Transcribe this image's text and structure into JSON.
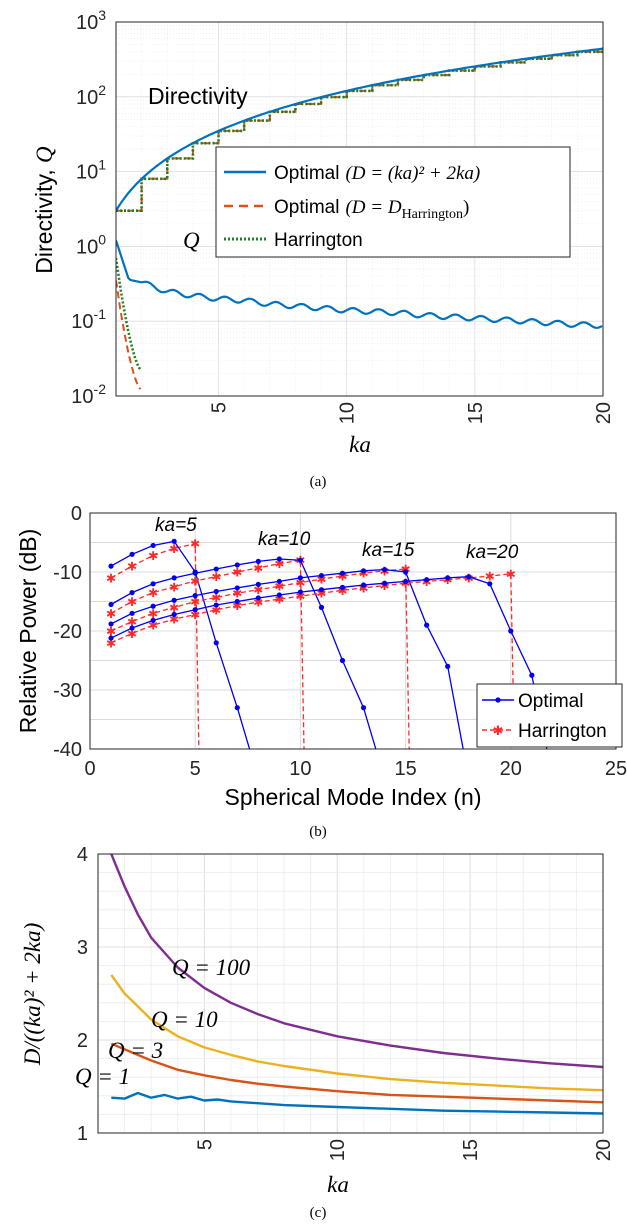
{
  "chart_data": [
    {
      "id": "a",
      "type": "line",
      "caption": "(a)",
      "ylabel_main": "Directivity, ",
      "ylabel_italic": "Q",
      "xlabel": "ka",
      "yscale": "log",
      "xlim": [
        1,
        20
      ],
      "ylim": [
        0.01,
        1000
      ],
      "xticks": [
        "5",
        "10",
        "15",
        "20"
      ],
      "ytick_bases": [
        "10",
        "10",
        "10",
        "10",
        "10",
        "10"
      ],
      "ytick_exps": [
        "-2",
        "-1",
        "0",
        "1",
        "2",
        "3"
      ],
      "grid": true,
      "annotations": [
        "Directivity",
        "Q"
      ],
      "legend": [
        {
          "label": "Optimal",
          "formula": "(D = (ka)² + 2ka)"
        },
        {
          "label": "Optimal",
          "formula": "(D = D",
          "sub": "Harrington",
          "close": ")"
        },
        {
          "label": "Harrington",
          "formula": ""
        }
      ],
      "legend_position": "center-right",
      "directivity_series": {
        "x": [
          1,
          2,
          3,
          4,
          5,
          6,
          7,
          8,
          9,
          10,
          11,
          12,
          13,
          14,
          15,
          16,
          17,
          18,
          19,
          20
        ],
        "optimal": [
          3,
          8,
          15,
          24,
          35,
          48,
          63,
          80,
          99,
          120,
          143,
          168,
          195,
          224,
          255,
          288,
          323,
          360,
          399,
          440
        ],
        "harrington_steps": [
          3,
          8,
          15,
          24,
          35,
          48,
          63,
          80,
          99,
          120,
          143,
          168,
          195,
          224,
          255,
          288,
          323,
          360,
          399,
          440
        ]
      },
      "q_series": {
        "optimal_x": [
          1,
          1.5,
          2,
          3,
          4,
          5,
          6,
          7,
          8,
          9,
          10,
          11,
          12,
          13,
          14,
          15,
          16,
          17,
          18,
          19,
          20
        ],
        "optimal_q": [
          1.2,
          0.36,
          0.33,
          0.25,
          0.22,
          0.2,
          0.19,
          0.17,
          0.16,
          0.15,
          0.14,
          0.135,
          0.13,
          0.12,
          0.115,
          0.11,
          0.105,
          0.1,
          0.095,
          0.09,
          0.088
        ],
        "harrington_peak": 0.7,
        "harrington_trough": 0.02,
        "optimal_dd_peak": 0.35,
        "optimal_dd_trough": 0.012
      }
    },
    {
      "id": "b",
      "type": "line",
      "caption": "(b)",
      "xlabel": "Spherical Mode Index (n)",
      "ylabel": "Relative Power (dB)",
      "xlim": [
        0,
        25
      ],
      "ylim": [
        -40,
        0
      ],
      "xticks": [
        "0",
        "5",
        "10",
        "15",
        "20",
        "25"
      ],
      "yticks": [
        "0",
        "-10",
        "-20",
        "-30",
        "-40"
      ],
      "grid": true,
      "legend": [
        "Optimal",
        "Harrington"
      ],
      "legend_position": "bottom-right",
      "annotations": [
        "ka=5",
        "ka=10",
        "ka=15",
        "ka=20"
      ],
      "series": [
        {
          "ka": 5,
          "optimal_n": [
            1,
            2,
            3,
            4,
            5,
            6,
            7,
            8
          ],
          "optimal_db": [
            -9,
            -7,
            -5.5,
            -4.8,
            -10,
            -22,
            -33,
            -45
          ],
          "harrington_n": [
            1,
            2,
            3,
            4,
            5,
            5.2
          ],
          "harrington_db": [
            -11,
            -9,
            -7.2,
            -6,
            -5.2,
            -45
          ]
        },
        {
          "ka": 10,
          "optimal_n": [
            1,
            2,
            3,
            4,
            5,
            6,
            7,
            8,
            9,
            10,
            11,
            12,
            13,
            14
          ],
          "optimal_db": [
            -15.5,
            -13.5,
            -12,
            -11,
            -10.2,
            -9.5,
            -8.8,
            -8.2,
            -7.8,
            -8,
            -16,
            -25,
            -33,
            -45
          ],
          "harrington_n": [
            1,
            2,
            3,
            4,
            5,
            6,
            7,
            8,
            9,
            10,
            10.2
          ],
          "harrington_db": [
            -17,
            -15,
            -13.5,
            -12.5,
            -11.5,
            -10.8,
            -10,
            -9.3,
            -8.6,
            -8,
            -45
          ]
        },
        {
          "ka": 15,
          "optimal_n": [
            1,
            2,
            3,
            4,
            5,
            6,
            7,
            8,
            9,
            10,
            11,
            12,
            13,
            14,
            15,
            16,
            17,
            18
          ],
          "optimal_db": [
            -18.8,
            -17,
            -15.8,
            -14.8,
            -14,
            -13.3,
            -12.7,
            -12.1,
            -11.6,
            -11,
            -10.6,
            -10.2,
            -9.8,
            -9.6,
            -10,
            -19,
            -26,
            -45
          ],
          "harrington_n": [
            1,
            2,
            3,
            4,
            5,
            6,
            7,
            8,
            9,
            10,
            11,
            12,
            13,
            14,
            15,
            15.2
          ],
          "harrington_db": [
            -20,
            -18.4,
            -17,
            -16,
            -15,
            -14.3,
            -13.6,
            -13,
            -12.4,
            -11.8,
            -11.2,
            -10.7,
            -10.2,
            -9.8,
            -9.5,
            -45
          ]
        },
        {
          "ka": 20,
          "optimal_n": [
            1,
            2,
            3,
            4,
            5,
            6,
            7,
            8,
            9,
            10,
            11,
            12,
            13,
            14,
            15,
            16,
            17,
            18,
            19,
            20,
            21,
            22
          ],
          "optimal_db": [
            -21.2,
            -19.5,
            -18.2,
            -17.2,
            -16.4,
            -15.6,
            -15,
            -14.4,
            -13.9,
            -13.4,
            -13,
            -12.6,
            -12.2,
            -11.9,
            -11.6,
            -11.3,
            -11,
            -10.8,
            -12,
            -20,
            -27.5,
            -45
          ],
          "harrington_n": [
            1,
            2,
            3,
            4,
            5,
            6,
            7,
            8,
            9,
            10,
            11,
            12,
            13,
            14,
            15,
            16,
            17,
            18,
            19,
            20,
            20.2
          ],
          "harrington_db": [
            -22,
            -20.4,
            -19,
            -18,
            -17.2,
            -16.4,
            -15.7,
            -15.1,
            -14.6,
            -14.1,
            -13.6,
            -13.1,
            -12.7,
            -12.3,
            -11.9,
            -11.6,
            -11.3,
            -11,
            -10.7,
            -10.3,
            -45
          ]
        }
      ]
    },
    {
      "id": "c",
      "type": "line",
      "caption": "(c)",
      "xlabel": "ka",
      "ylabel": "D/((ka)² + 2ka)",
      "xlim": [
        1,
        20
      ],
      "ylim": [
        1,
        4
      ],
      "xticks": [
        "5",
        "10",
        "15",
        "20"
      ],
      "yticks": [
        "1",
        "2",
        "3",
        "4"
      ],
      "grid": true,
      "series": [
        {
          "name": "Q = 100",
          "color": "#7E2F8E",
          "x": [
            1.5,
            2,
            2.5,
            3,
            4,
            5,
            6,
            7,
            8,
            10,
            12,
            14,
            16,
            18,
            20
          ],
          "y": [
            4.0,
            3.65,
            3.35,
            3.1,
            2.78,
            2.56,
            2.4,
            2.28,
            2.18,
            2.04,
            1.94,
            1.86,
            1.8,
            1.75,
            1.71
          ]
        },
        {
          "name": "Q = 10",
          "color": "#EDB120",
          "x": [
            1.5,
            2,
            3,
            4,
            5,
            6,
            7,
            8,
            10,
            12,
            14,
            16,
            18,
            20
          ],
          "y": [
            2.7,
            2.5,
            2.22,
            2.04,
            1.92,
            1.84,
            1.77,
            1.72,
            1.64,
            1.58,
            1.54,
            1.51,
            1.48,
            1.46
          ]
        },
        {
          "name": "Q = 3",
          "color": "#D95319",
          "x": [
            1.5,
            2,
            3,
            4,
            5,
            6,
            7,
            8,
            10,
            12,
            14,
            16,
            18,
            20
          ],
          "y": [
            1.96,
            1.9,
            1.78,
            1.68,
            1.62,
            1.57,
            1.53,
            1.5,
            1.45,
            1.41,
            1.39,
            1.37,
            1.35,
            1.33
          ]
        },
        {
          "name": "Q = 1",
          "color": "#0072BD",
          "x": [
            1.5,
            2,
            2.5,
            3,
            3.5,
            4,
            4.5,
            5,
            5.5,
            6,
            7,
            8,
            10,
            12,
            14,
            16,
            18,
            20
          ],
          "y": [
            1.38,
            1.37,
            1.43,
            1.38,
            1.41,
            1.37,
            1.39,
            1.35,
            1.36,
            1.34,
            1.32,
            1.3,
            1.28,
            1.26,
            1.24,
            1.23,
            1.22,
            1.21
          ]
        }
      ]
    }
  ]
}
